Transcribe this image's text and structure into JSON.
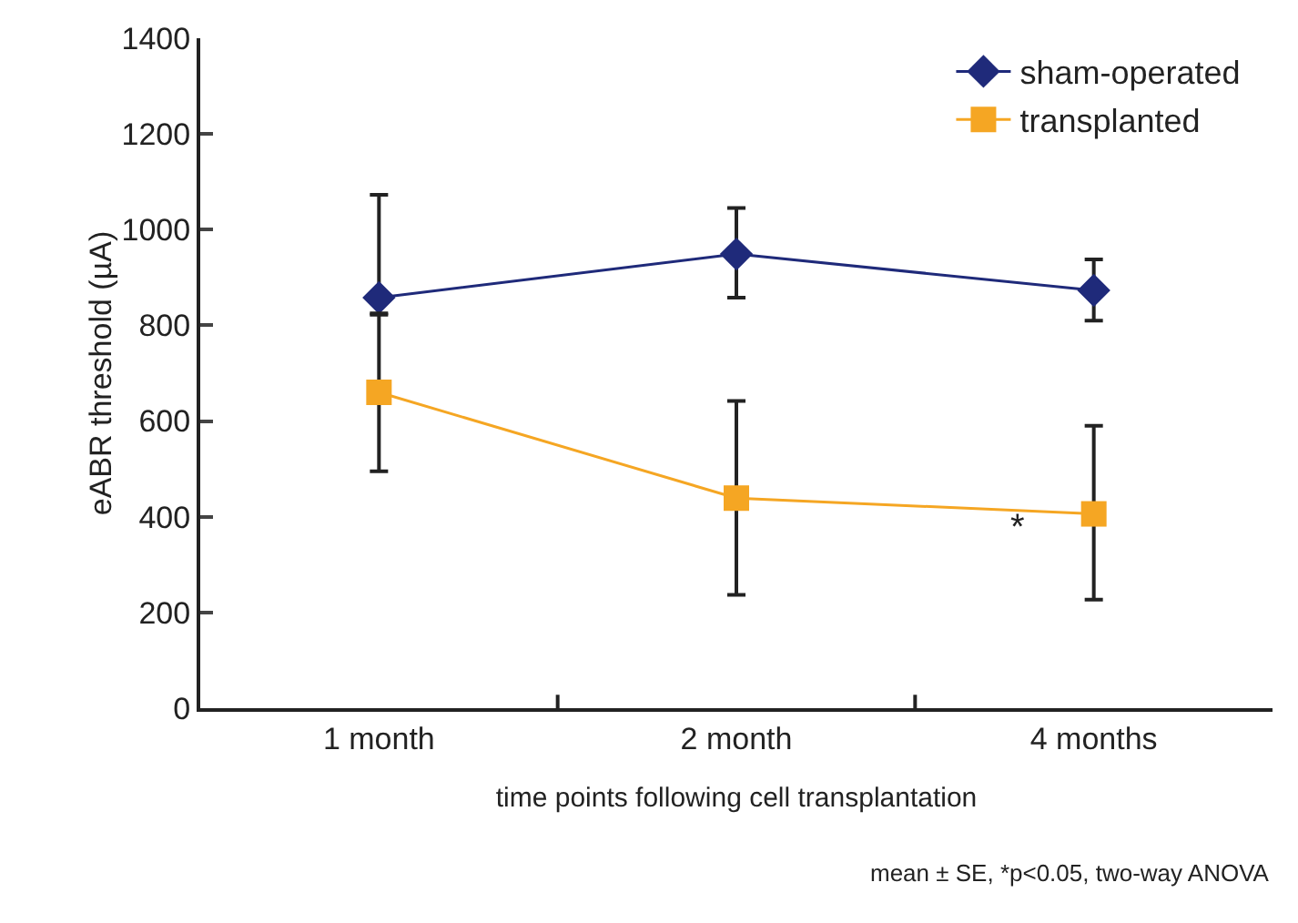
{
  "chart_data": {
    "type": "line",
    "xlabel": "time points following cell transplantation",
    "ylabel": "eABR threshold (µA)",
    "categories": [
      "1 month",
      "2 month",
      "4 months"
    ],
    "series": [
      {
        "name": "sham-operated",
        "color": "#1f2a7a",
        "marker": "diamond",
        "values": [
          858,
          949,
          873
        ],
        "errors": [
          [
            822,
            1073
          ],
          [
            858,
            1045
          ],
          [
            810,
            938
          ]
        ]
      },
      {
        "name": "transplanted",
        "color": "#f5a623",
        "marker": "square",
        "values": [
          660,
          439,
          406
        ],
        "errors": [
          [
            495,
            825
          ],
          [
            237,
            642
          ],
          [
            227,
            590
          ]
        ]
      }
    ],
    "ylim": [
      0,
      1400
    ],
    "yticks": [
      0,
      200,
      400,
      600,
      800,
      1000,
      1200,
      1400
    ],
    "grid": false,
    "legend": "top right",
    "annotations": [
      {
        "text": "*",
        "x": "4 months",
        "y": 378
      },
      "mean ± SE, *p<0.05, two-way ANOVA"
    ]
  }
}
